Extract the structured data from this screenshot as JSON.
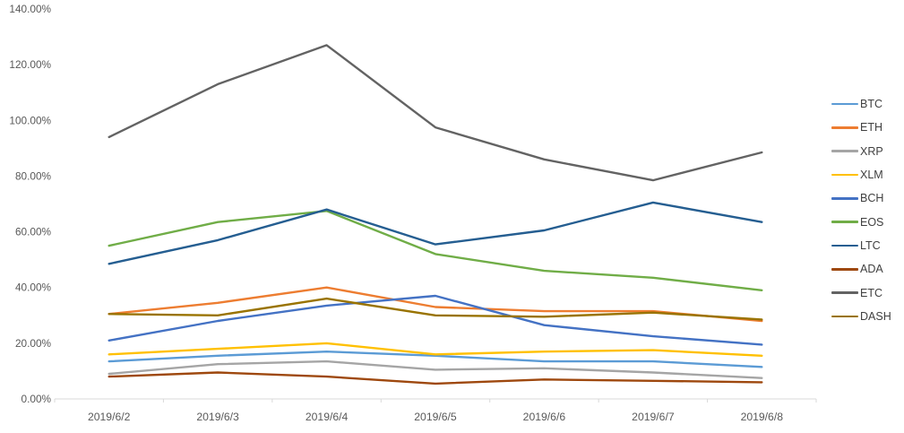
{
  "chart_data": {
    "type": "line",
    "title": "",
    "xlabel": "",
    "ylabel": "",
    "categories": [
      "2019/6/2",
      "2019/6/3",
      "2019/6/4",
      "2019/6/5",
      "2019/6/6",
      "2019/6/7",
      "2019/6/8"
    ],
    "series": [
      {
        "name": "BTC",
        "color": "#5B9BD5",
        "values": [
          13.5,
          15.5,
          17,
          15.5,
          13.5,
          13.5,
          11.5
        ]
      },
      {
        "name": "ETH",
        "color": "#ED7D31",
        "values": [
          30.5,
          34.5,
          40,
          33,
          31.5,
          31.5,
          28
        ]
      },
      {
        "name": "XRP",
        "color": "#A5A5A5",
        "values": [
          9,
          12.5,
          13.5,
          10.5,
          11,
          9.5,
          7.5
        ]
      },
      {
        "name": "XLM",
        "color": "#FFC000",
        "values": [
          16,
          18,
          20,
          16,
          17,
          17.5,
          15.5
        ]
      },
      {
        "name": "BCH",
        "color": "#4472C4",
        "values": [
          21,
          28,
          33.5,
          37,
          26.5,
          22.5,
          19.5
        ]
      },
      {
        "name": "EOS",
        "color": "#70AD47",
        "values": [
          55,
          63.5,
          67.5,
          52,
          46,
          43.5,
          39
        ]
      },
      {
        "name": "LTC",
        "color": "#255E91",
        "values": [
          48.5,
          57,
          68,
          55.5,
          60.5,
          70.5,
          63.5
        ]
      },
      {
        "name": "ADA",
        "color": "#9E480E",
        "values": [
          8,
          9.5,
          8,
          5.5,
          7,
          6.5,
          6
        ]
      },
      {
        "name": "ETC",
        "color": "#636363",
        "values": [
          94,
          113,
          127,
          97.5,
          86,
          78.5,
          88.5
        ]
      },
      {
        "name": "DASH",
        "color": "#997300",
        "values": [
          30.5,
          30,
          36,
          30,
          29.5,
          31,
          28.5
        ]
      }
    ],
    "ylim": [
      0,
      140
    ],
    "ytick_step": 20,
    "ytick_labels": [
      "0.00%",
      "20.00%",
      "40.00%",
      "60.00%",
      "80.00%",
      "100.00%",
      "120.00%",
      "140.00%"
    ],
    "grid": false,
    "legend_position": "right",
    "axis_color": "#D9D9D9",
    "tick_label_color": "#595959",
    "legend_text_color": "#404040",
    "background": "#FFFFFF"
  }
}
